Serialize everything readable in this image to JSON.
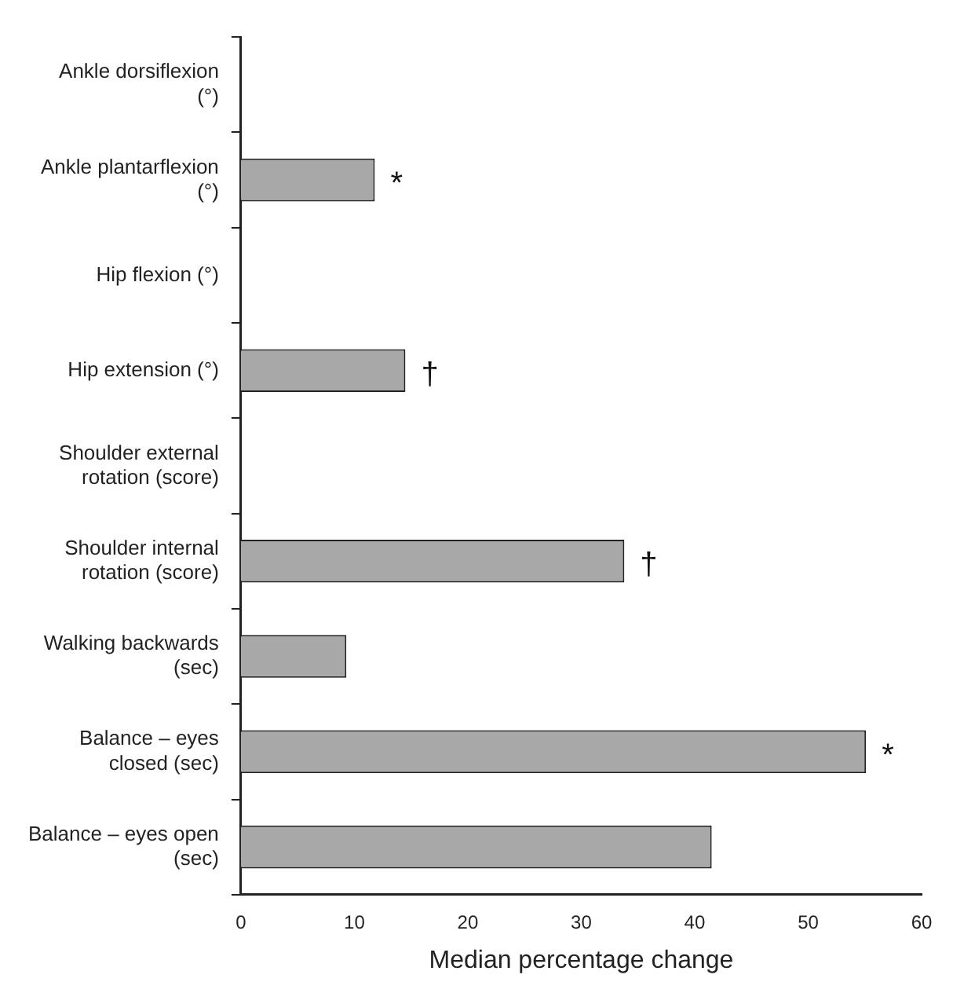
{
  "chart_data": {
    "type": "bar",
    "orientation": "horizontal",
    "xlabel": "Median percentage change",
    "categories": [
      "Ankle dorsiflexion (°)",
      "Ankle plantarflexion (°)",
      "Hip flexion (°)",
      "Hip extension (°)",
      "Shoulder external rotation (score)",
      "Shoulder internal rotation (score)",
      "Walking backwards (sec)",
      "Balance – eyes closed (sec)",
      "Balance – eyes open (sec)"
    ],
    "values": [
      0,
      11.8,
      0,
      14.5,
      0,
      33.8,
      9.3,
      55.1,
      41.5
    ],
    "color": "#a8a8a8",
    "xlim": [
      0,
      60
    ],
    "xticks": [
      0,
      10,
      20,
      30,
      40,
      50,
      60
    ],
    "grid": false,
    "legend": false,
    "annotations": [
      {
        "text": "*",
        "x": 11.8,
        "y": "Ankle plantarflexion (°)"
      },
      {
        "text": "†",
        "x": 14.5,
        "y": "Hip extension (°)"
      },
      {
        "text": "†",
        "x": 33.8,
        "y": "Shoulder internal rotation (score)"
      },
      {
        "text": "*",
        "x": 55.1,
        "y": "Balance – eyes closed (sec)"
      }
    ]
  }
}
